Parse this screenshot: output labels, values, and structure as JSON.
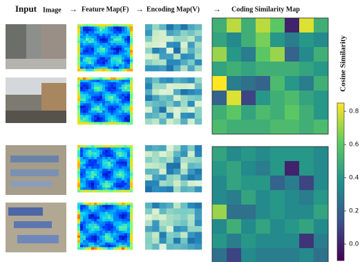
{
  "labels": {
    "input": "Input",
    "image": "Image",
    "feature": "Feature Map(F)",
    "encoding": "Encoding Map(V)",
    "similarity": "Coding Similarity Map"
  },
  "colorbar": {
    "label": "Cosine Similarity",
    "clim": [
      -0.1,
      0.85
    ],
    "ticks": [
      {
        "value": 0.0,
        "label": "0.0"
      },
      0.2,
      0.4,
      0.6,
      0.8
    ]
  },
  "similarity_maps": [
    [
      [
        0.5,
        0.75,
        0.5,
        0.75,
        0.6,
        0.0,
        0.8,
        0.5
      ],
      [
        0.45,
        0.35,
        0.5,
        0.65,
        0.4,
        0.3,
        0.4,
        0.35
      ],
      [
        0.7,
        0.4,
        0.3,
        0.6,
        0.7,
        0.2,
        0.35,
        0.5
      ],
      [
        0.45,
        0.5,
        0.45,
        0.5,
        0.5,
        0.5,
        0.45,
        0.4
      ],
      [
        0.85,
        0.3,
        0.25,
        0.2,
        0.55,
        0.4,
        0.3,
        0.5
      ],
      [
        0.2,
        0.8,
        0.1,
        0.4,
        0.5,
        0.55,
        0.45,
        0.4
      ],
      [
        0.5,
        0.6,
        0.45,
        0.55,
        0.5,
        0.6,
        0.5,
        0.4
      ],
      [
        0.55,
        0.5,
        0.5,
        0.5,
        0.55,
        0.55,
        0.5,
        0.55
      ]
    ],
    [
      [
        0.45,
        0.35,
        0.4,
        0.35,
        0.4,
        0.4,
        0.4,
        0.35
      ],
      [
        0.4,
        0.45,
        0.35,
        0.3,
        0.4,
        0.0,
        0.4,
        0.35
      ],
      [
        0.35,
        0.45,
        0.4,
        0.4,
        0.2,
        0.3,
        0.1,
        0.35
      ],
      [
        0.35,
        0.3,
        0.45,
        0.35,
        0.4,
        0.35,
        0.3,
        0.4
      ],
      [
        0.7,
        0.25,
        0.25,
        0.35,
        0.4,
        0.35,
        0.35,
        0.45
      ],
      [
        0.35,
        0.5,
        0.35,
        0.45,
        0.35,
        0.4,
        0.45,
        0.35
      ],
      [
        0.4,
        0.3,
        0.4,
        0.35,
        0.35,
        0.35,
        0.05,
        0.3
      ],
      [
        0.25,
        0.1,
        0.35,
        0.3,
        0.3,
        0.3,
        0.35,
        0.25
      ]
    ]
  ]
}
